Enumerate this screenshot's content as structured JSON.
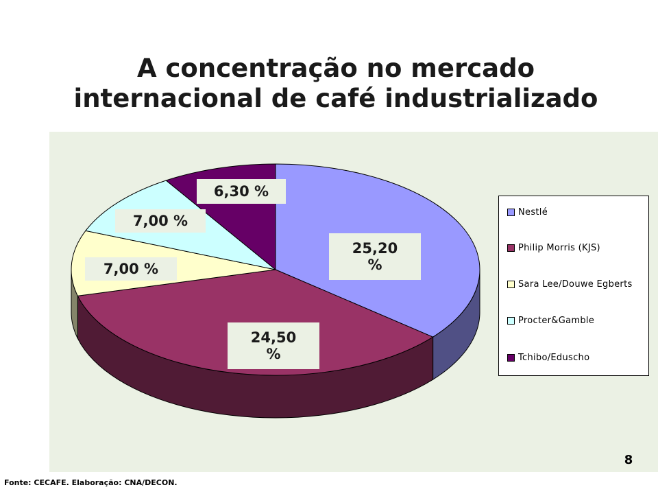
{
  "title": {
    "line1": "A concentração no  mercado",
    "line2": "internacional de café industrializado"
  },
  "chart_data": {
    "type": "pie",
    "style": "3d-exploded-pie",
    "legend_position": "right",
    "slices": [
      {
        "name": "Nestlé",
        "value": 25.2,
        "label": "25,20 %",
        "color": "#9999ff"
      },
      {
        "name": "Philip Morris (KJS)",
        "value": 24.5,
        "label": "24,50 %",
        "color": "#993366"
      },
      {
        "name": "Sara Lee/Douwe Egberts",
        "value": 7.0,
        "label": "7,00 %",
        "color": "#ffffcc"
      },
      {
        "name": "Procter&Gamble",
        "value": 7.0,
        "label": "7,00 %",
        "color": "#ccffff"
      },
      {
        "name": "Tchibo/Eduscho",
        "value": 6.3,
        "label": "6,30 %",
        "color": "#660066"
      }
    ]
  },
  "colors": {
    "plot_background": "#ebf1e4",
    "title_text": "#1a1a1a"
  },
  "page_number": "8",
  "source_note": "Fonte: CECAFE.  Elaboração: CNA/DECON."
}
